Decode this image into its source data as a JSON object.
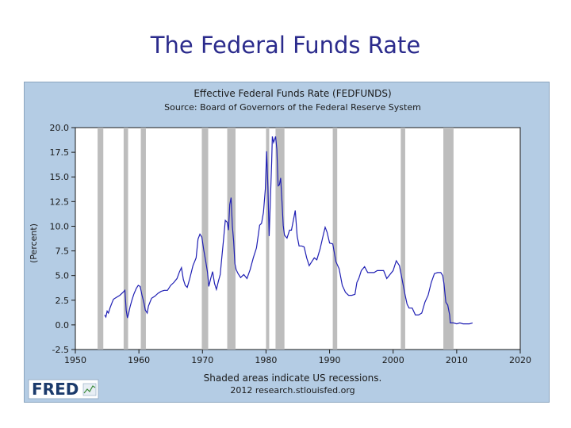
{
  "slide": {
    "title": "The Federal Funds Rate"
  },
  "chart_data": {
    "type": "line",
    "title": "Effective Federal Funds Rate (FEDFUNDS)",
    "subtitle": "Source: Board of Governors of the Federal Reserve System",
    "ylabel": "(Percent)",
    "xlabel": "",
    "xlim": [
      1950,
      2020
    ],
    "ylim": [
      -2.5,
      20.0
    ],
    "xticks": [
      "1950",
      "1960",
      "1970",
      "1980",
      "1990",
      "2000",
      "2010",
      "2020"
    ],
    "yticks": [
      "20.0",
      "17.5",
      "15.0",
      "12.5",
      "10.0",
      "7.5",
      "5.0",
      "2.5",
      "0.0",
      "-2.5"
    ],
    "grid": false,
    "line_color": "#1f1fb4",
    "recession_color": "#bdbdbd",
    "footnote": "Shaded areas indicate US recessions.",
    "credit": "2012 research.stlouisfed.org",
    "logo_text": "FRED",
    "recessions": [
      [
        1953.5,
        1954.4
      ],
      [
        1957.6,
        1958.3
      ],
      [
        1960.3,
        1961.1
      ],
      [
        1969.9,
        1970.9
      ],
      [
        1973.9,
        1975.2
      ],
      [
        1980.0,
        1980.5
      ],
      [
        1981.5,
        1982.9
      ],
      [
        1990.5,
        1991.2
      ],
      [
        2001.2,
        2001.9
      ],
      [
        2007.9,
        2009.5
      ]
    ],
    "series": [
      {
        "x": [
          1954.6,
          1954.8,
          1955.0,
          1955.2,
          1955.5,
          1955.8,
          1956.0,
          1956.5,
          1957.0,
          1957.5,
          1957.8,
          1958.0,
          1958.2,
          1958.4,
          1958.6,
          1958.9,
          1959.2,
          1959.6,
          1959.9,
          1960.2,
          1960.5,
          1960.8,
          1961.0,
          1961.3,
          1961.5,
          1961.8,
          1962.0,
          1962.5,
          1963.0,
          1963.5,
          1964.0,
          1964.5,
          1965.0,
          1965.5,
          1966.0,
          1966.4,
          1966.7,
          1967.0,
          1967.3,
          1967.6,
          1968.0,
          1968.5,
          1969.0,
          1969.3,
          1969.6,
          1969.9,
          1970.2,
          1970.5,
          1970.8,
          1971.0,
          1971.3,
          1971.6,
          1971.9,
          1972.2,
          1972.5,
          1972.8,
          1973.0,
          1973.3,
          1973.6,
          1973.9,
          1974.1,
          1974.3,
          1974.5,
          1974.7,
          1974.9,
          1975.1,
          1975.3,
          1975.6,
          1976.0,
          1976.5,
          1977.0,
          1977.5,
          1978.0,
          1978.5,
          1979.0,
          1979.3,
          1979.6,
          1979.9,
          1980.1,
          1980.3,
          1980.5,
          1980.7,
          1980.9,
          1981.0,
          1981.2,
          1981.5,
          1981.7,
          1981.9,
          1982.1,
          1982.3,
          1982.5,
          1982.7,
          1982.9,
          1983.3,
          1983.7,
          1984.0,
          1984.3,
          1984.6,
          1984.9,
          1985.2,
          1985.6,
          1986.0,
          1986.4,
          1986.8,
          1987.2,
          1987.6,
          1988.0,
          1988.5,
          1989.0,
          1989.3,
          1989.6,
          1990.0,
          1990.5,
          1991.0,
          1991.5,
          1992.0,
          1992.5,
          1993.0,
          1993.5,
          1994.0,
          1994.3,
          1994.6,
          1995.0,
          1995.5,
          1996.0,
          1996.5,
          1997.0,
          1997.5,
          1998.0,
          1998.5,
          1999.0,
          1999.5,
          2000.0,
          2000.5,
          2001.0,
          2001.3,
          2001.6,
          2001.9,
          2002.2,
          2002.5,
          2003.0,
          2003.5,
          2004.0,
          2004.5,
          2005.0,
          2005.5,
          2006.0,
          2006.5,
          2007.0,
          2007.5,
          2007.8,
          2008.0,
          2008.3,
          2008.6,
          2008.9,
          2009.0,
          2009.5,
          2010.0,
          2010.5,
          2011.0,
          2011.5,
          2012.0,
          2012.5
        ],
        "y": [
          1.0,
          0.8,
          1.4,
          1.2,
          1.8,
          2.3,
          2.6,
          2.8,
          3.0,
          3.3,
          3.5,
          1.5,
          0.7,
          1.2,
          1.8,
          2.5,
          3.1,
          3.7,
          4.0,
          3.9,
          3.0,
          2.2,
          1.5,
          1.2,
          1.9,
          2.4,
          2.7,
          2.9,
          3.2,
          3.4,
          3.5,
          3.5,
          4.0,
          4.3,
          4.7,
          5.4,
          5.8,
          4.6,
          4.0,
          3.8,
          4.7,
          6.0,
          6.8,
          8.7,
          9.2,
          8.9,
          7.6,
          6.5,
          5.3,
          3.9,
          4.7,
          5.4,
          4.2,
          3.6,
          4.4,
          5.1,
          6.5,
          8.5,
          10.6,
          10.4,
          9.6,
          12.2,
          12.9,
          10.0,
          8.5,
          6.2,
          5.6,
          5.2,
          4.8,
          5.1,
          4.7,
          5.6,
          6.8,
          7.8,
          10.1,
          10.3,
          11.4,
          13.8,
          17.6,
          14.0,
          9.0,
          12.8,
          16.6,
          19.1,
          18.5,
          19.1,
          17.8,
          14.1,
          14.2,
          14.9,
          12.6,
          10.1,
          9.1,
          8.8,
          9.6,
          9.6,
          10.6,
          11.6,
          9.0,
          8.0,
          8.0,
          7.9,
          6.8,
          6.0,
          6.4,
          6.8,
          6.6,
          7.7,
          9.1,
          9.9,
          9.4,
          8.3,
          8.2,
          6.4,
          5.7,
          4.0,
          3.3,
          3.0,
          3.0,
          3.1,
          4.3,
          4.7,
          5.5,
          5.9,
          5.3,
          5.3,
          5.3,
          5.5,
          5.5,
          5.5,
          4.7,
          5.1,
          5.5,
          6.5,
          6.0,
          5.0,
          4.0,
          3.0,
          2.1,
          1.7,
          1.7,
          1.0,
          1.0,
          1.2,
          2.3,
          3.0,
          4.3,
          5.2,
          5.3,
          5.3,
          5.0,
          4.2,
          2.3,
          2.0,
          1.0,
          0.2,
          0.2,
          0.1,
          0.2,
          0.1,
          0.1,
          0.1,
          0.2
        ]
      }
    ]
  }
}
